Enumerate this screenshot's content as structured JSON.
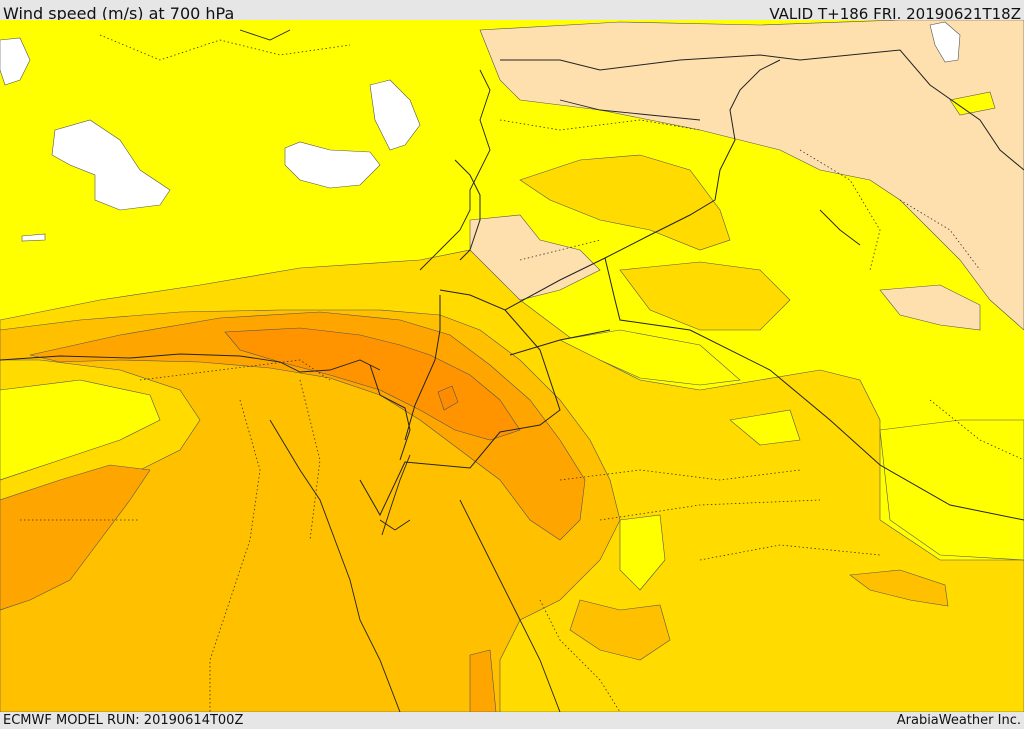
{
  "header": {
    "title": "Wind speed (m/s) at 700 hPa",
    "valid": "VALID T+186 FRI. 20190621T18Z"
  },
  "footer": {
    "model_run": "ECMWF MODEL RUN: 20190614T00Z",
    "credit": "ArabiaWeather Inc."
  },
  "colors": {
    "calm_white": "#ffffff",
    "light_yellow": "#ffff00",
    "beige": "#fde0ae",
    "gold": "#ffdb00",
    "yellow_orange": "#ffc000",
    "orange": "#ffa500",
    "dark_orange": "#ff9400"
  }
}
